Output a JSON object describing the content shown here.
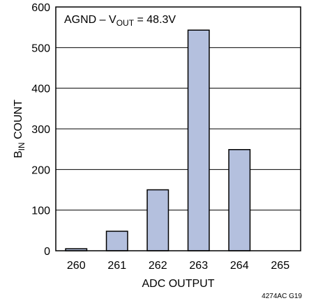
{
  "chart_data": {
    "type": "bar",
    "title": "",
    "annotation": {
      "prefix": "AGND – V",
      "sub": "OUT",
      "suffix": " = 48.3V"
    },
    "categories": [
      "260",
      "261",
      "262",
      "263",
      "264",
      "265"
    ],
    "values": [
      5,
      48,
      150,
      543,
      249,
      0
    ],
    "xlabel": "ADC OUTPUT",
    "ylabel": {
      "main": "B",
      "sub": "IN",
      "rest": "  COUNT"
    },
    "yticks": [
      0,
      100,
      200,
      300,
      400,
      500,
      600
    ],
    "ylim": [
      0,
      600
    ],
    "grid": true,
    "bar_color": "#b4c0de",
    "footnote": "4274AC G19"
  }
}
